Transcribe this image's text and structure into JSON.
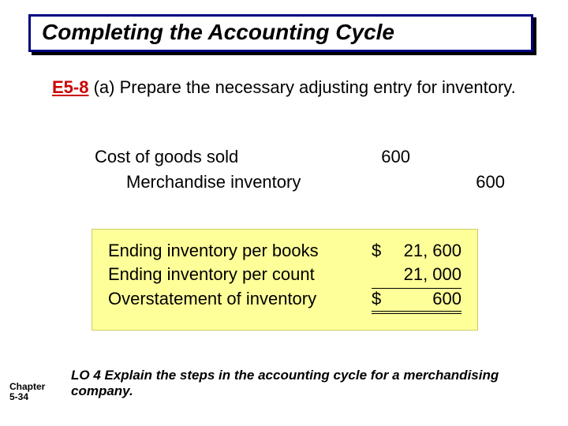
{
  "title": "Completing the Accounting Cycle",
  "problem": {
    "label": "E5-8",
    "text": " (a) Prepare the necessary adjusting entry for inventory."
  },
  "journal": {
    "rows": [
      {
        "account": "Cost of goods sold",
        "debit": "600",
        "credit": "",
        "indent": false
      },
      {
        "account": "Merchandise inventory",
        "debit": "",
        "credit": "600",
        "indent": true
      }
    ]
  },
  "calc": {
    "rows": [
      {
        "label": "Ending inventory per books",
        "symbol": "$",
        "value": "21, 600",
        "rule": ""
      },
      {
        "label": "Ending inventory per count",
        "symbol": "",
        "value": "21, 000",
        "rule": "single"
      },
      {
        "label": "Overstatement of inventory",
        "symbol": "$",
        "value": "600",
        "rule": "double"
      }
    ]
  },
  "footer": {
    "chapter_line1": "Chapter",
    "chapter_line2": "5-34",
    "lo": "LO 4  Explain the steps in the accounting cycle for a merchandising company."
  },
  "colors": {
    "title_border": "#000080",
    "label_red": "#cc0000",
    "calc_bg": "#ffff99"
  }
}
